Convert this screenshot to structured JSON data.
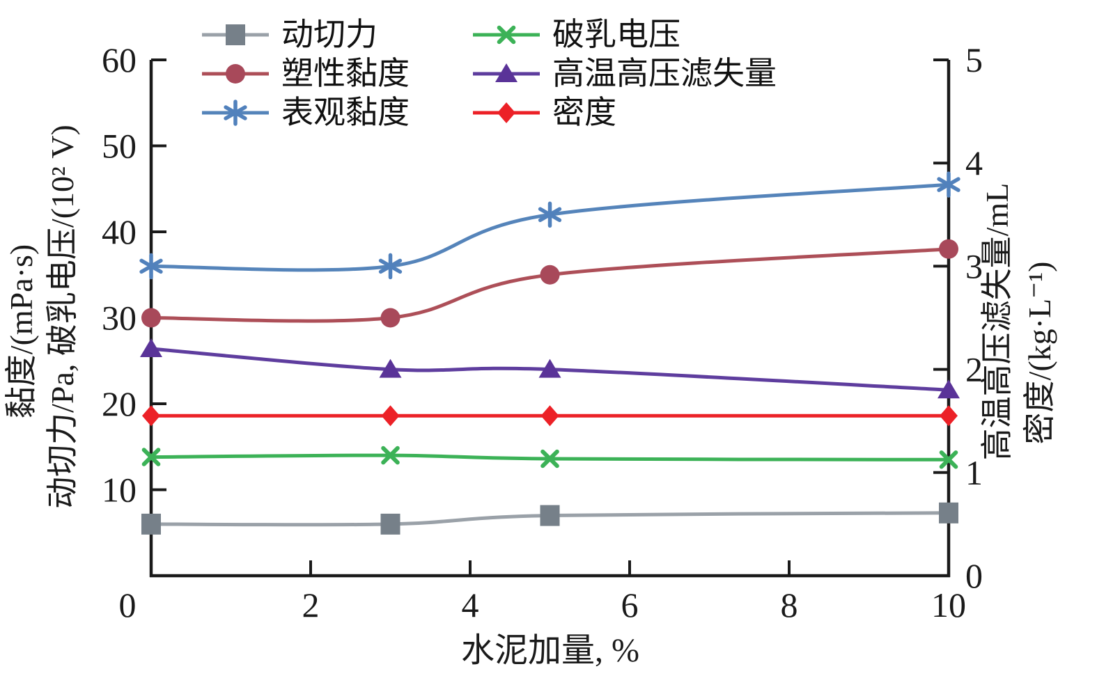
{
  "figure": {
    "background": "#ffffff",
    "axis_color": "#1a1a1a"
  },
  "chart_data": {
    "type": "line",
    "title": "",
    "xlabel": "水泥加量, %",
    "x": [
      0,
      3,
      5,
      10
    ],
    "x_range": [
      0,
      10
    ],
    "x_ticks": [
      0,
      2,
      4,
      6,
      8,
      10
    ],
    "grid": false,
    "legend_position": "top-inside-two-columns",
    "left_axis": {
      "title_outer": "黏度/(mPa·s)",
      "title_inner": "动切力/Pa, 破乳电压/(10² V)",
      "range": [
        0,
        60
      ],
      "ticks": [
        10,
        20,
        30,
        40,
        50,
        60
      ]
    },
    "right_axis": {
      "title_inner": "高温高压滤失量/mL",
      "title_outer": "密度/(kg·L⁻¹)",
      "range": [
        0,
        5
      ],
      "ticks": [
        0,
        1,
        2,
        3,
        4,
        5
      ]
    },
    "origin_label": "0",
    "series": [
      {
        "key": "yield-stress",
        "name": "动切力",
        "axis": "left",
        "marker": "square",
        "color": "#768089",
        "line_color": "#9aa1a8",
        "values": [
          6,
          6,
          7,
          7.3
        ]
      },
      {
        "key": "plastic-viscosity",
        "name": "塑性黏度",
        "axis": "left",
        "marker": "circle",
        "color": "#a8495a",
        "line_color": "#ad4f58",
        "values": [
          30,
          30,
          35,
          38
        ]
      },
      {
        "key": "apparent-viscosity",
        "name": "表观黏度",
        "axis": "left",
        "marker": "asterisk",
        "color": "#5181bc",
        "line_color": "#5584ba",
        "values": [
          36,
          36,
          42,
          45.5
        ]
      },
      {
        "key": "demulsification-voltage",
        "name": "破乳电压",
        "axis": "left",
        "marker": "x-cross",
        "color": "#3cb257",
        "line_color": "#3cb257",
        "values": [
          13.8,
          14,
          13.6,
          13.5
        ]
      },
      {
        "key": "hthp-fluid-loss",
        "name": "高温高压滤失量",
        "axis": "right",
        "marker": "triangle",
        "color": "#5a3398",
        "line_color": "#5e3d9e",
        "values": [
          2.2,
          2.0,
          2.0,
          1.8
        ]
      },
      {
        "key": "density",
        "name": "密度",
        "axis": "right",
        "marker": "diamond",
        "color": "#ec2127",
        "line_color": "#ec2127",
        "values": [
          1.55,
          1.55,
          1.55,
          1.55
        ]
      }
    ],
    "legend_columns": [
      [
        "yield-stress",
        "plastic-viscosity",
        "apparent-viscosity"
      ],
      [
        "demulsification-voltage",
        "hthp-fluid-loss",
        "density"
      ]
    ]
  }
}
